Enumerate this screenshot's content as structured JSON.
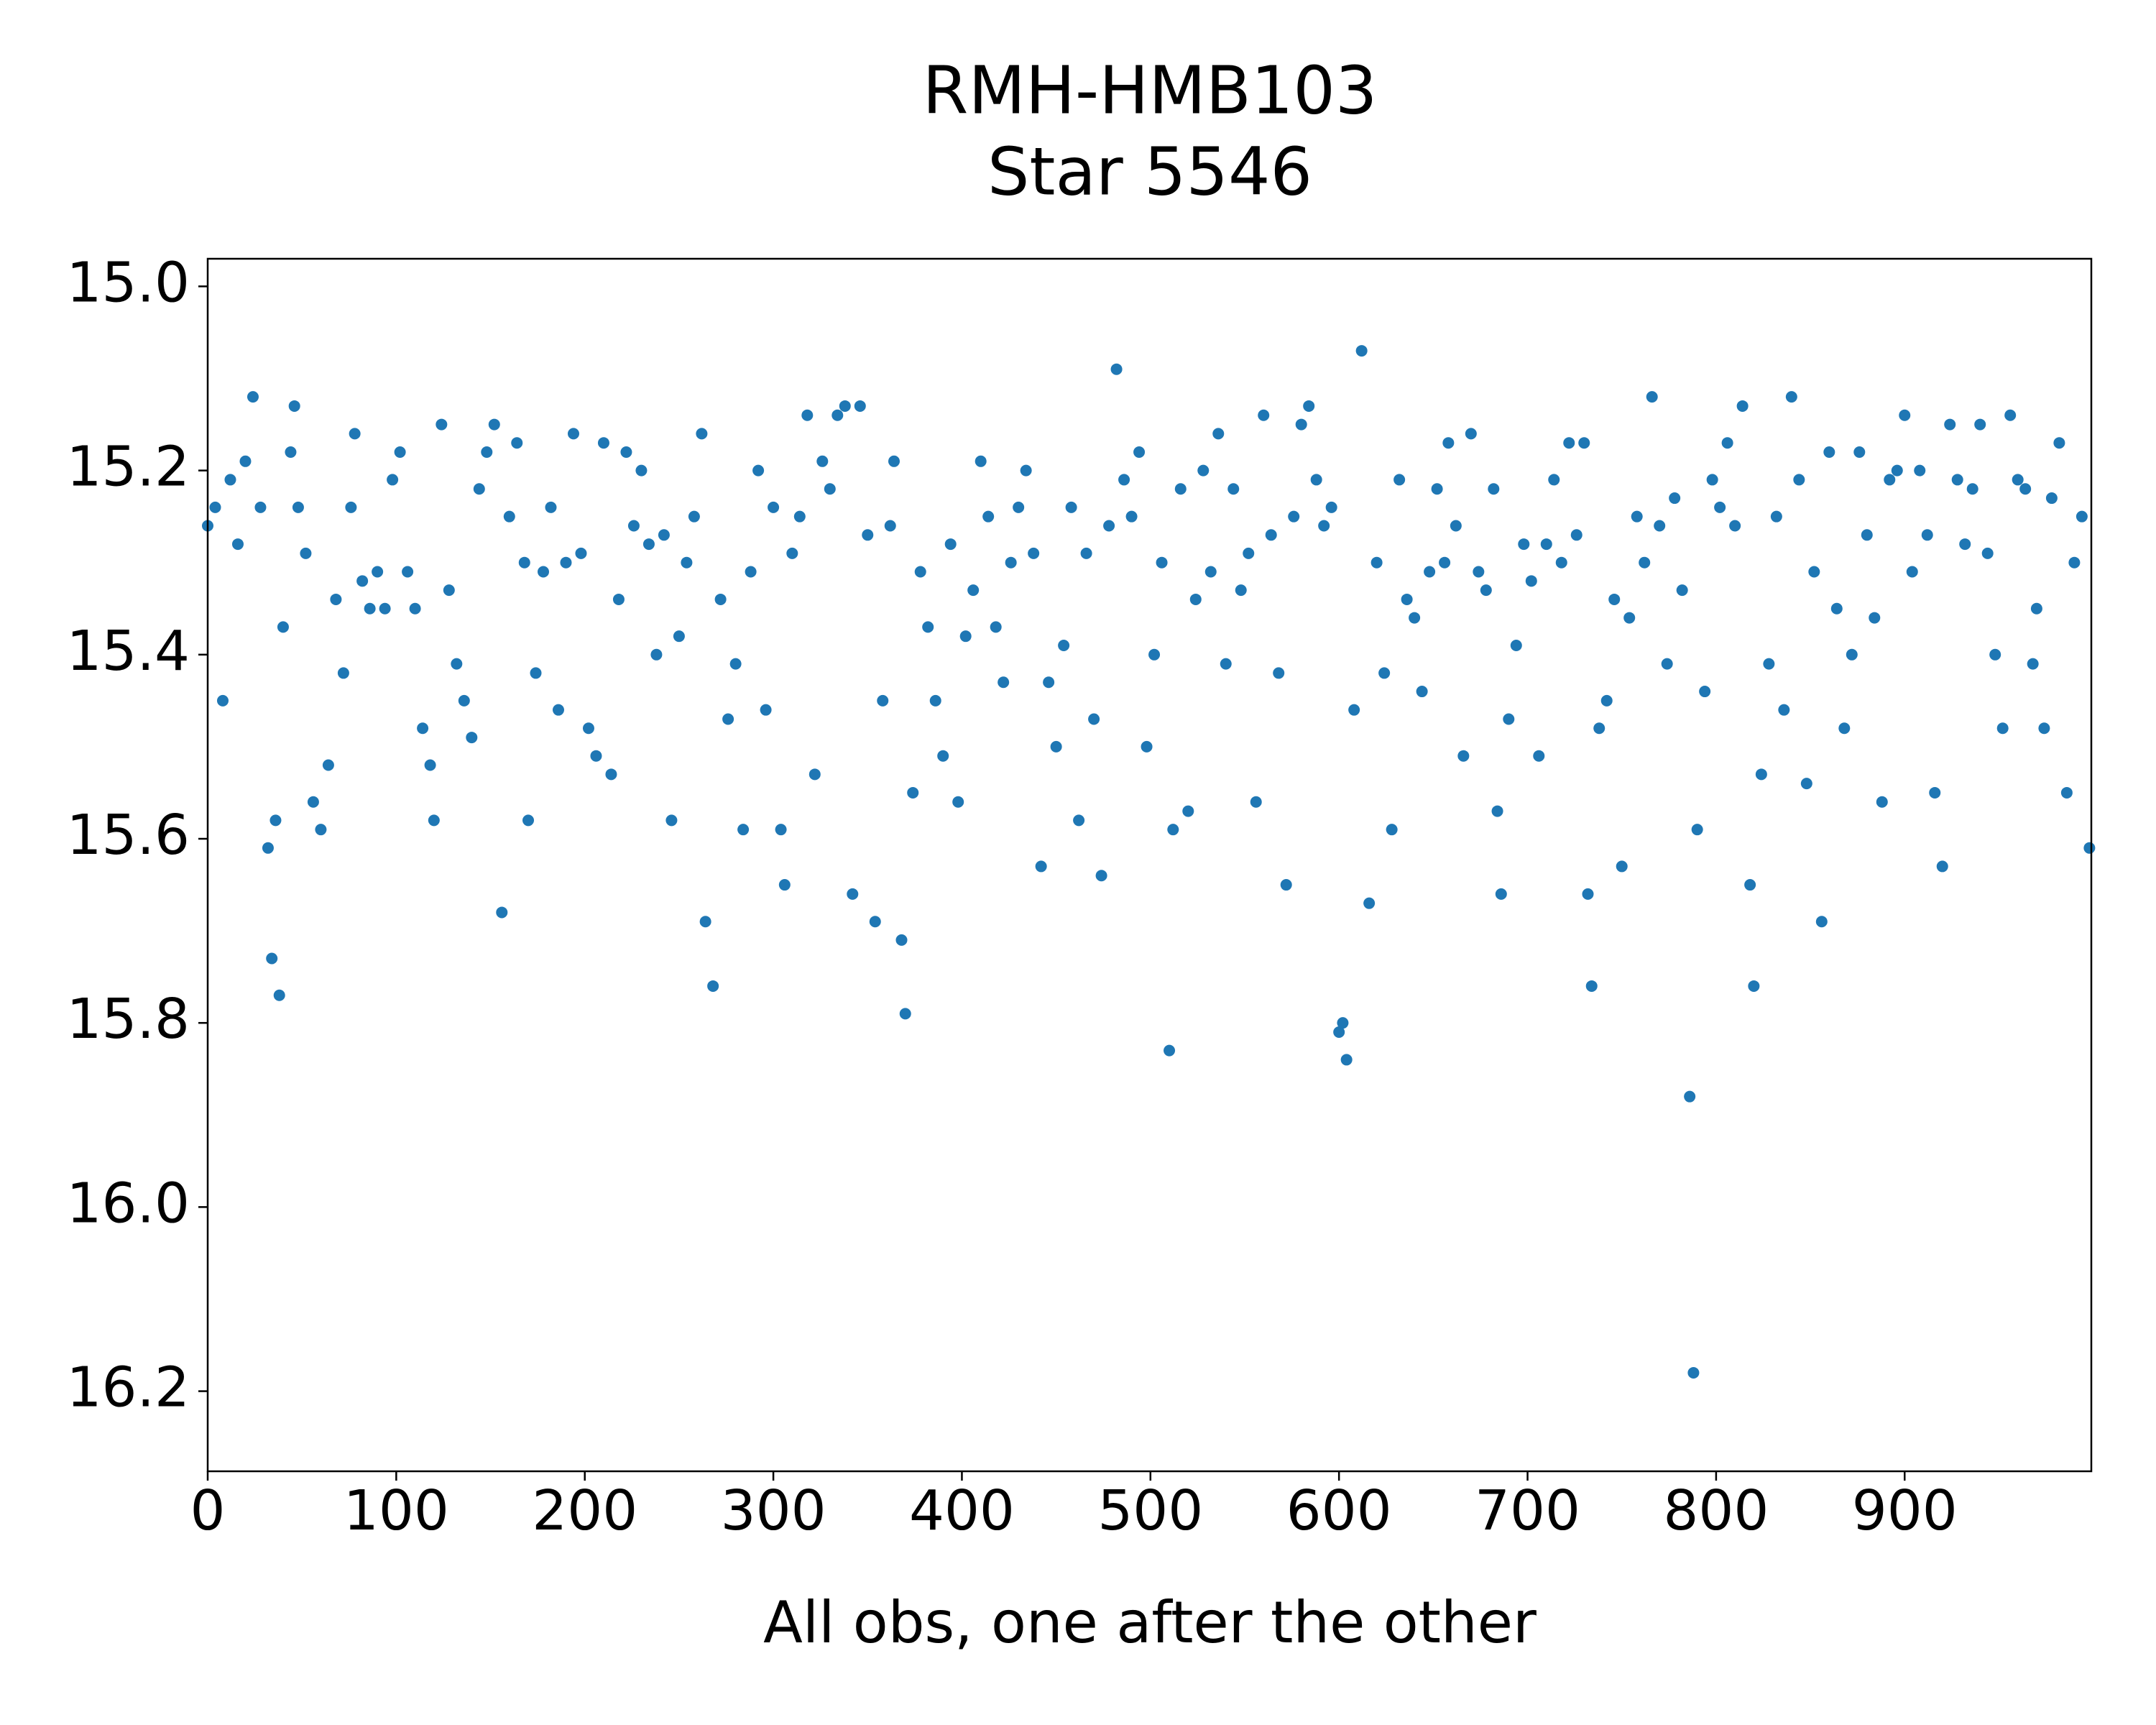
{
  "chart_data": {
    "type": "scatter",
    "title": "RMH-HMB103",
    "subtitle": "Star 5546",
    "x_label": "All obs, one after the other",
    "color": "#1f77b4",
    "xlim": [
      0,
      999
    ],
    "ylim": [
      14.97,
      16.287
    ],
    "y_inverted": true,
    "grid": false,
    "xticks": [
      0,
      100,
      200,
      300,
      400,
      500,
      600,
      700,
      800,
      900
    ],
    "yticks": [
      {
        "value": 15.0,
        "label": "15.0"
      },
      15.2,
      15.4,
      15.6,
      15.8,
      {
        "value": 16.0,
        "label": "16.0"
      },
      16.2
    ],
    "x": [
      0,
      4,
      8,
      12,
      16,
      20,
      24,
      28,
      32,
      34,
      36,
      38,
      40,
      44,
      46,
      48,
      52,
      56,
      60,
      64,
      68,
      72,
      76,
      78,
      82,
      86,
      90,
      94,
      98,
      102,
      106,
      110,
      114,
      118,
      120,
      124,
      128,
      132,
      136,
      140,
      144,
      148,
      152,
      156,
      160,
      164,
      168,
      170,
      174,
      178,
      182,
      186,
      190,
      194,
      198,
      202,
      206,
      210,
      214,
      218,
      222,
      226,
      230,
      234,
      238,
      242,
      246,
      250,
      254,
      258,
      262,
      264,
      268,
      272,
      276,
      280,
      284,
      288,
      292,
      296,
      300,
      304,
      306,
      310,
      314,
      318,
      322,
      326,
      330,
      334,
      338,
      342,
      346,
      350,
      354,
      358,
      362,
      364,
      368,
      370,
      374,
      378,
      382,
      386,
      390,
      394,
      398,
      402,
      406,
      410,
      414,
      418,
      422,
      426,
      430,
      434,
      438,
      442,
      446,
      450,
      454,
      458,
      462,
      466,
      470,
      474,
      478,
      482,
      486,
      490,
      494,
      498,
      502,
      506,
      510,
      512,
      516,
      520,
      524,
      528,
      532,
      536,
      540,
      544,
      548,
      552,
      556,
      560,
      564,
      568,
      572,
      576,
      580,
      584,
      588,
      592,
      596,
      600,
      602,
      604,
      608,
      612,
      616,
      620,
      624,
      628,
      632,
      636,
      640,
      644,
      648,
      652,
      656,
      658,
      662,
      666,
      670,
      674,
      678,
      682,
      684,
      686,
      690,
      694,
      698,
      702,
      706,
      710,
      714,
      718,
      722,
      726,
      730,
      732,
      734,
      738,
      742,
      746,
      750,
      754,
      758,
      762,
      766,
      770,
      774,
      778,
      782,
      786,
      788,
      790,
      794,
      798,
      802,
      806,
      810,
      814,
      818,
      820,
      824,
      828,
      832,
      836,
      840,
      844,
      848,
      852,
      856,
      860,
      864,
      868,
      872,
      876,
      880,
      884,
      888,
      892,
      896,
      900,
      904,
      908,
      912,
      916,
      920,
      924,
      928,
      932,
      936,
      940,
      944,
      948,
      952,
      956,
      960,
      964,
      968,
      970,
      974,
      978,
      982,
      986,
      990,
      994,
      998
    ],
    "values": [
      15.26,
      15.24,
      15.45,
      15.21,
      15.28,
      15.19,
      15.12,
      15.24,
      15.61,
      15.73,
      15.58,
      15.77,
      15.37,
      15.18,
      15.13,
      15.24,
      15.29,
      15.56,
      15.59,
      15.52,
      15.34,
      15.42,
      15.24,
      15.16,
      15.32,
      15.35,
      15.31,
      15.35,
      15.21,
      15.18,
      15.31,
      15.35,
      15.48,
      15.52,
      15.58,
      15.15,
      15.33,
      15.41,
      15.45,
      15.49,
      15.22,
      15.18,
      15.15,
      15.68,
      15.25,
      15.17,
      15.3,
      15.58,
      15.42,
      15.31,
      15.24,
      15.46,
      15.3,
      15.16,
      15.29,
      15.48,
      15.51,
      15.17,
      15.53,
      15.34,
      15.18,
      15.26,
      15.2,
      15.28,
      15.4,
      15.27,
      15.58,
      15.38,
      15.3,
      15.25,
      15.16,
      15.69,
      15.76,
      15.34,
      15.47,
      15.41,
      15.59,
      15.31,
      15.2,
      15.46,
      15.24,
      15.59,
      15.65,
      15.29,
      15.25,
      15.14,
      15.53,
      15.19,
      15.22,
      15.14,
      15.13,
      15.66,
      15.13,
      15.27,
      15.69,
      15.45,
      15.26,
      15.19,
      15.71,
      15.79,
      15.55,
      15.31,
      15.37,
      15.45,
      15.51,
      15.28,
      15.56,
      15.38,
      15.33,
      15.19,
      15.25,
      15.37,
      15.43,
      15.3,
      15.24,
      15.2,
      15.29,
      15.63,
      15.43,
      15.5,
      15.39,
      15.24,
      15.58,
      15.29,
      15.47,
      15.64,
      15.26,
      15.09,
      15.21,
      15.25,
      15.18,
      15.5,
      15.4,
      15.3,
      15.83,
      15.59,
      15.22,
      15.57,
      15.34,
      15.2,
      15.31,
      15.16,
      15.41,
      15.22,
      15.33,
      15.29,
      15.56,
      15.14,
      15.27,
      15.42,
      15.65,
      15.25,
      15.15,
      15.13,
      15.21,
      15.26,
      15.24,
      15.81,
      15.8,
      15.84,
      15.46,
      15.07,
      15.67,
      15.3,
      15.42,
      15.59,
      15.21,
      15.34,
      15.36,
      15.44,
      15.31,
      15.22,
      15.3,
      15.17,
      15.26,
      15.51,
      15.16,
      15.31,
      15.33,
      15.22,
      15.57,
      15.66,
      15.47,
      15.39,
      15.28,
      15.32,
      15.51,
      15.28,
      15.21,
      15.3,
      15.17,
      15.27,
      15.17,
      15.66,
      15.76,
      15.48,
      15.45,
      15.34,
      15.63,
      15.36,
      15.25,
      15.3,
      15.12,
      15.26,
      15.41,
      15.23,
      15.33,
      15.88,
      16.18,
      15.59,
      15.44,
      15.21,
      15.24,
      15.17,
      15.26,
      15.13,
      15.65,
      15.76,
      15.53,
      15.41,
      15.25,
      15.46,
      15.12,
      15.21,
      15.54,
      15.31,
      15.69,
      15.18,
      15.35,
      15.48,
      15.4,
      15.18,
      15.27,
      15.36,
      15.56,
      15.21,
      15.2,
      15.14,
      15.31,
      15.2,
      15.27,
      15.55,
      15.63,
      15.15,
      15.21,
      15.28,
      15.22,
      15.15,
      15.29,
      15.4,
      15.48,
      15.14,
      15.21,
      15.22,
      15.41,
      15.35,
      15.48,
      15.23,
      15.17,
      15.55,
      15.3,
      15.25,
      15.61
    ]
  }
}
